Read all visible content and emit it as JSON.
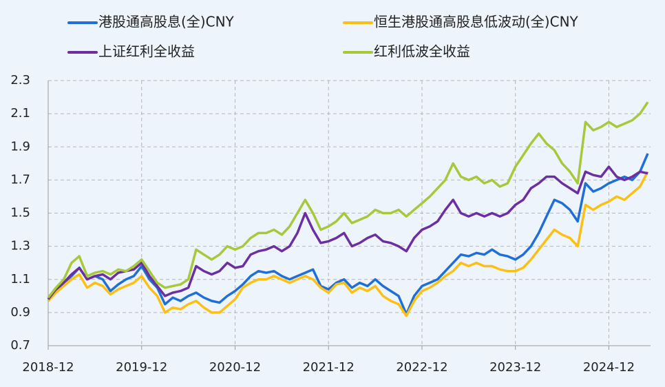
{
  "chart_data": {
    "type": "line",
    "x": [
      "2018-12",
      "2019-01",
      "2019-02",
      "2019-03",
      "2019-04",
      "2019-05",
      "2019-06",
      "2019-07",
      "2019-08",
      "2019-09",
      "2019-10",
      "2019-11",
      "2019-12",
      "2020-01",
      "2020-02",
      "2020-03",
      "2020-04",
      "2020-05",
      "2020-06",
      "2020-07",
      "2020-08",
      "2020-09",
      "2020-10",
      "2020-11",
      "2020-12",
      "2021-01",
      "2021-02",
      "2021-03",
      "2021-04",
      "2021-05",
      "2021-06",
      "2021-07",
      "2021-08",
      "2021-09",
      "2021-10",
      "2021-11",
      "2021-12",
      "2022-01",
      "2022-02",
      "2022-03",
      "2022-04",
      "2022-05",
      "2022-06",
      "2022-07",
      "2022-08",
      "2022-09",
      "2022-10",
      "2022-11",
      "2022-12",
      "2023-01",
      "2023-02",
      "2023-03",
      "2023-04",
      "2023-05",
      "2023-06",
      "2023-07",
      "2023-08",
      "2023-09",
      "2023-10",
      "2023-11",
      "2023-12",
      "2024-01",
      "2024-02",
      "2024-03",
      "2024-04",
      "2024-05",
      "2024-06",
      "2024-07",
      "2024-08",
      "2024-09",
      "2024-10",
      "2024-11",
      "2024-12",
      "2025-01",
      "2025-02",
      "2025-03",
      "2025-04",
      "2025-05"
    ],
    "series": [
      {
        "name": "港股通高股息(全)CNY",
        "color": "#1f6fd6",
        "values": [
          0.97,
          1.03,
          1.08,
          1.12,
          1.17,
          1.1,
          1.12,
          1.1,
          1.03,
          1.07,
          1.1,
          1.12,
          1.18,
          1.1,
          1.05,
          0.95,
          0.99,
          0.97,
          1.0,
          1.02,
          0.99,
          0.97,
          0.96,
          1.0,
          1.03,
          1.07,
          1.12,
          1.15,
          1.14,
          1.15,
          1.12,
          1.1,
          1.12,
          1.14,
          1.16,
          1.06,
          1.04,
          1.08,
          1.1,
          1.05,
          1.08,
          1.06,
          1.1,
          1.06,
          1.03,
          1.0,
          0.89,
          1.0,
          1.06,
          1.08,
          1.1,
          1.15,
          1.2,
          1.25,
          1.24,
          1.26,
          1.25,
          1.28,
          1.25,
          1.24,
          1.22,
          1.25,
          1.3,
          1.38,
          1.48,
          1.58,
          1.56,
          1.52,
          1.45,
          1.68,
          1.63,
          1.65,
          1.68,
          1.7,
          1.72,
          1.7,
          1.75,
          1.86
        ]
      },
      {
        "name": "恒生港股通高股息低波动(全)CNY",
        "color": "#fcbf13",
        "values": [
          0.97,
          1.02,
          1.06,
          1.1,
          1.13,
          1.05,
          1.08,
          1.06,
          1.01,
          1.04,
          1.06,
          1.08,
          1.12,
          1.05,
          1.0,
          0.9,
          0.93,
          0.92,
          0.95,
          0.97,
          0.93,
          0.9,
          0.9,
          0.94,
          0.98,
          1.05,
          1.08,
          1.1,
          1.1,
          1.12,
          1.1,
          1.08,
          1.1,
          1.12,
          1.1,
          1.05,
          1.02,
          1.07,
          1.08,
          1.02,
          1.05,
          1.03,
          1.06,
          1.0,
          0.97,
          0.95,
          0.88,
          0.97,
          1.03,
          1.05,
          1.08,
          1.12,
          1.15,
          1.2,
          1.18,
          1.2,
          1.18,
          1.18,
          1.16,
          1.15,
          1.15,
          1.17,
          1.22,
          1.28,
          1.34,
          1.4,
          1.37,
          1.35,
          1.3,
          1.55,
          1.52,
          1.55,
          1.57,
          1.6,
          1.58,
          1.62,
          1.66,
          1.75
        ]
      },
      {
        "name": "上证红利全收益",
        "color": "#6b2fa0",
        "values": [
          0.98,
          1.04,
          1.08,
          1.13,
          1.17,
          1.1,
          1.12,
          1.13,
          1.1,
          1.14,
          1.15,
          1.16,
          1.2,
          1.12,
          1.06,
          1.0,
          1.02,
          1.03,
          1.05,
          1.18,
          1.15,
          1.13,
          1.15,
          1.2,
          1.17,
          1.18,
          1.25,
          1.27,
          1.28,
          1.3,
          1.27,
          1.3,
          1.38,
          1.5,
          1.4,
          1.32,
          1.33,
          1.35,
          1.38,
          1.3,
          1.32,
          1.35,
          1.37,
          1.33,
          1.32,
          1.3,
          1.27,
          1.35,
          1.4,
          1.42,
          1.45,
          1.52,
          1.58,
          1.5,
          1.48,
          1.5,
          1.48,
          1.5,
          1.48,
          1.5,
          1.55,
          1.58,
          1.65,
          1.68,
          1.72,
          1.72,
          1.68,
          1.65,
          1.62,
          1.75,
          1.73,
          1.72,
          1.78,
          1.72,
          1.7,
          1.72,
          1.75,
          1.74
        ]
      },
      {
        "name": "红利低波全收益",
        "color": "#a6c93a",
        "values": [
          0.99,
          1.05,
          1.1,
          1.2,
          1.24,
          1.12,
          1.14,
          1.15,
          1.13,
          1.16,
          1.15,
          1.18,
          1.22,
          1.15,
          1.08,
          1.05,
          1.06,
          1.07,
          1.1,
          1.28,
          1.25,
          1.22,
          1.25,
          1.3,
          1.28,
          1.3,
          1.35,
          1.38,
          1.38,
          1.4,
          1.37,
          1.42,
          1.5,
          1.58,
          1.5,
          1.4,
          1.42,
          1.45,
          1.5,
          1.44,
          1.46,
          1.48,
          1.52,
          1.5,
          1.5,
          1.52,
          1.48,
          1.52,
          1.56,
          1.6,
          1.65,
          1.7,
          1.8,
          1.72,
          1.7,
          1.72,
          1.68,
          1.7,
          1.66,
          1.68,
          1.78,
          1.85,
          1.92,
          1.98,
          1.92,
          1.88,
          1.8,
          1.75,
          1.68,
          2.05,
          2.0,
          2.02,
          2.05,
          2.02,
          2.04,
          2.06,
          2.1,
          2.17
        ]
      }
    ],
    "ylim": [
      0.7,
      2.3
    ],
    "yticks": [
      {
        "value": 0.7,
        "label": "0.7"
      },
      {
        "value": 0.9,
        "label": "0.9"
      },
      {
        "value": 1.1,
        "label": "1.1"
      },
      {
        "value": 1.3,
        "label": "1.3"
      },
      {
        "value": 1.5,
        "label": "1.5"
      },
      {
        "value": 1.7,
        "label": "1.7"
      },
      {
        "value": 1.9,
        "label": "1.9"
      },
      {
        "value": 2.1,
        "label": "2.1"
      },
      {
        "value": 2.3,
        "label": "2.3"
      }
    ],
    "xticks": [
      "2018-12",
      "2019-12",
      "2020-12",
      "2021-12",
      "2022-12",
      "2023-12",
      "2024-12"
    ],
    "grid": true
  }
}
